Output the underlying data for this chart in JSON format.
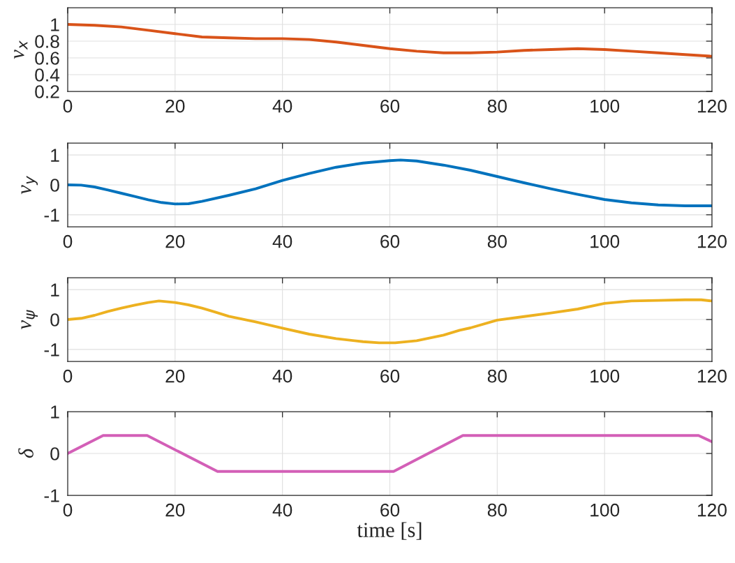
{
  "chart_data": [
    {
      "type": "line",
      "ylabel": "v$_{x}$",
      "x": [
        0,
        5,
        10,
        15,
        20,
        25,
        30,
        35,
        40,
        45,
        50,
        55,
        60,
        65,
        70,
        75,
        80,
        85,
        90,
        95,
        100,
        105,
        110,
        115,
        120
      ],
      "series": [
        {
          "color": "#d95319",
          "values": [
            1.0,
            0.99,
            0.97,
            0.93,
            0.89,
            0.85,
            0.84,
            0.83,
            0.83,
            0.82,
            0.79,
            0.75,
            0.71,
            0.68,
            0.66,
            0.66,
            0.67,
            0.69,
            0.7,
            0.71,
            0.7,
            0.68,
            0.66,
            0.64,
            0.62
          ]
        }
      ],
      "xlim": [
        0,
        120
      ],
      "xticks": [
        0,
        20,
        40,
        60,
        80,
        100,
        120
      ],
      "ylim": [
        0.2,
        1.2
      ],
      "yticks": [
        0.2,
        0.4,
        0.6,
        0.8,
        1
      ],
      "grid": true,
      "marker": "none",
      "line_style": "solid"
    },
    {
      "type": "line",
      "ylabel": "v$_{y}$",
      "x": [
        0,
        2.5,
        5,
        7.5,
        10,
        12.5,
        15,
        17.5,
        20,
        22.5,
        25,
        30,
        35,
        40,
        45,
        50,
        55,
        60,
        62,
        65,
        70,
        75,
        80,
        85,
        90,
        95,
        100,
        105,
        110,
        115,
        120
      ],
      "series": [
        {
          "color": "#0072bd",
          "values": [
            0,
            -0.01,
            -0.07,
            -0.17,
            -0.28,
            -0.39,
            -0.5,
            -0.59,
            -0.64,
            -0.63,
            -0.55,
            -0.35,
            -0.13,
            0.15,
            0.38,
            0.59,
            0.73,
            0.81,
            0.83,
            0.8,
            0.66,
            0.49,
            0.28,
            0.07,
            -0.13,
            -0.32,
            -0.49,
            -0.6,
            -0.67,
            -0.7,
            -0.7
          ]
        }
      ],
      "xlim": [
        0,
        120
      ],
      "xticks": [
        0,
        20,
        40,
        60,
        80,
        100,
        120
      ],
      "ylim": [
        -1.4,
        1.4
      ],
      "yticks": [
        -1,
        0,
        1
      ],
      "grid": true,
      "marker": "none",
      "line_style": "solid"
    },
    {
      "type": "line",
      "ylabel": "v$_{ψ}$",
      "x": [
        0,
        2.5,
        5,
        7.5,
        10,
        12.5,
        15,
        17,
        20,
        22.5,
        25,
        27.5,
        30,
        35,
        40,
        45,
        50,
        55,
        58,
        61,
        65,
        70,
        73,
        75,
        80,
        85,
        90,
        95,
        100,
        105,
        110,
        115,
        118,
        120
      ],
      "series": [
        {
          "color": "#edb120",
          "values": [
            0,
            0.04,
            0.14,
            0.27,
            0.38,
            0.48,
            0.57,
            0.62,
            0.57,
            0.49,
            0.38,
            0.25,
            0.11,
            -0.08,
            -0.29,
            -0.49,
            -0.64,
            -0.74,
            -0.78,
            -0.78,
            -0.71,
            -0.52,
            -0.36,
            -0.28,
            -0.02,
            0.1,
            0.22,
            0.35,
            0.54,
            0.62,
            0.64,
            0.66,
            0.66,
            0.62
          ]
        }
      ],
      "xlim": [
        0,
        120
      ],
      "xticks": [
        0,
        20,
        40,
        60,
        80,
        100,
        120
      ],
      "ylim": [
        -1.4,
        1.4
      ],
      "yticks": [
        -1,
        0,
        1
      ],
      "grid": true,
      "marker": "none",
      "line_style": "solid"
    },
    {
      "type": "line",
      "ylabel": "δ",
      "xlabel": "time [s]",
      "x": [
        0,
        6.6,
        14.8,
        27.9,
        60.7,
        73.6,
        117.5,
        120
      ],
      "series": [
        {
          "color": "#d35fb7",
          "values": [
            0,
            0.43,
            0.43,
            -0.43,
            -0.43,
            0.43,
            0.43,
            0.28
          ]
        }
      ],
      "xlim": [
        0,
        120
      ],
      "xticks": [
        0,
        20,
        40,
        60,
        80,
        100,
        120
      ],
      "ylim": [
        -1,
        1
      ],
      "yticks": [
        -1,
        0,
        1
      ],
      "grid": true,
      "marker": "none",
      "line_style": "solid"
    }
  ]
}
